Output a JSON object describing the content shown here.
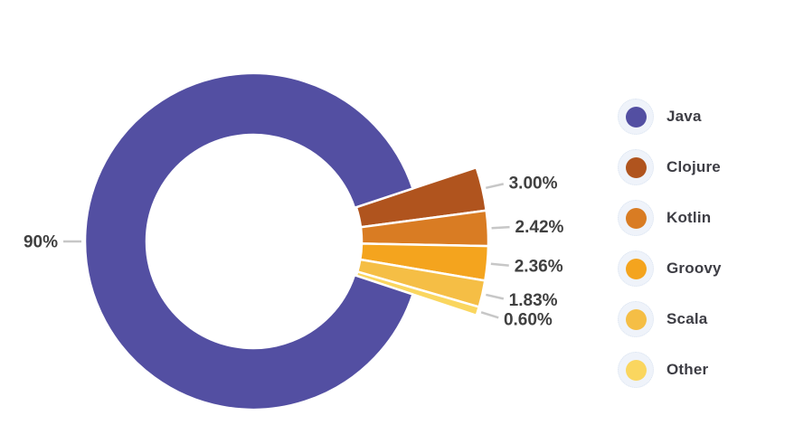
{
  "chart_data": {
    "type": "pie",
    "variant": "exploded-donut",
    "title": "",
    "legend_position": "right",
    "slices": [
      {
        "label": "Java",
        "value": 90.0,
        "display": "90%",
        "color": "#534FA2",
        "exploded": false
      },
      {
        "label": "Clojure",
        "value": 3.0,
        "display": "3.00%",
        "color": "#B0541E",
        "exploded": true
      },
      {
        "label": "Kotlin",
        "value": 2.42,
        "display": "2.42%",
        "color": "#D97C23",
        "exploded": true
      },
      {
        "label": "Groovy",
        "value": 2.36,
        "display": "2.36%",
        "color": "#F4A41E",
        "exploded": true
      },
      {
        "label": "Scala",
        "value": 1.83,
        "display": "1.83%",
        "color": "#F5BE45",
        "exploded": true
      },
      {
        "label": "Other",
        "value": 0.6,
        "display": "0.60%",
        "color": "#FAD65F",
        "exploded": true
      }
    ]
  },
  "legend": {
    "items": [
      "Java",
      "Clojure",
      "Kotlin",
      "Groovy",
      "Scala",
      "Other"
    ]
  },
  "styles": {
    "label_color": "#404040",
    "legend_text_color": "#3D3D44",
    "leader_line_color": "#C7C7C7",
    "halo_color": "#EFF3FA",
    "background": "#FFFFFF"
  }
}
